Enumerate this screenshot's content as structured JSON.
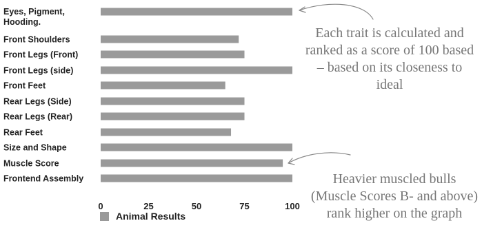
{
  "chart_data": {
    "type": "bar",
    "orientation": "horizontal",
    "categories": [
      [
        "Eyes, Pigment,",
        "Hooding."
      ],
      [
        "Front Shoulders"
      ],
      [
        "Front Legs (Front)"
      ],
      [
        "Front Legs (side)"
      ],
      [
        "Front Feet"
      ],
      [
        "Rear Legs (Side)"
      ],
      [
        "Rear Legs (Rear)"
      ],
      [
        "Rear Feet"
      ],
      [
        "Size and Shape"
      ],
      [
        "Muscle Score"
      ],
      [
        "Frontend Assembly"
      ]
    ],
    "series": [
      {
        "name": "Animal Results",
        "color": "#9a9a9a",
        "values": [
          100,
          72,
          75,
          100,
          65,
          75,
          75,
          68,
          100,
          95,
          100
        ]
      }
    ],
    "xlim": [
      0,
      100
    ],
    "xticks": [
      "0",
      "25",
      "50",
      "75",
      "100"
    ],
    "grid": false,
    "legend_position": "bottom-left"
  },
  "legend": {
    "label": "Animal Results"
  },
  "annotations": {
    "note1": "Each trait is calculated and ranked as a score of 100 based – based on its closeness to ideal",
    "note2": "Heavier muscled bulls (Muscle Scores B- and above) rank higher on the graph"
  }
}
